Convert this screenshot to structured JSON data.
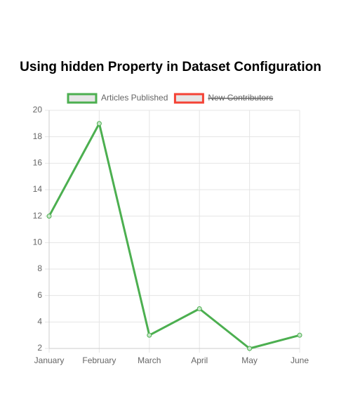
{
  "chart_data": {
    "type": "line",
    "title": "Using hidden Property in Dataset Configuration",
    "categories": [
      "January",
      "February",
      "March",
      "April",
      "May",
      "June"
    ],
    "series": [
      {
        "name": "Articles Published",
        "color": "#4caf50",
        "values": [
          12,
          19,
          3,
          5,
          2,
          3
        ]
      },
      {
        "name": "New Contributors",
        "color": "#f44336",
        "hidden": true,
        "values": [
          null,
          null,
          null,
          null,
          null,
          null
        ]
      }
    ],
    "ylim": [
      2,
      20
    ],
    "yticks": [
      2,
      4,
      6,
      8,
      10,
      12,
      14,
      16,
      18,
      20
    ],
    "grid": true,
    "legend": "top"
  }
}
